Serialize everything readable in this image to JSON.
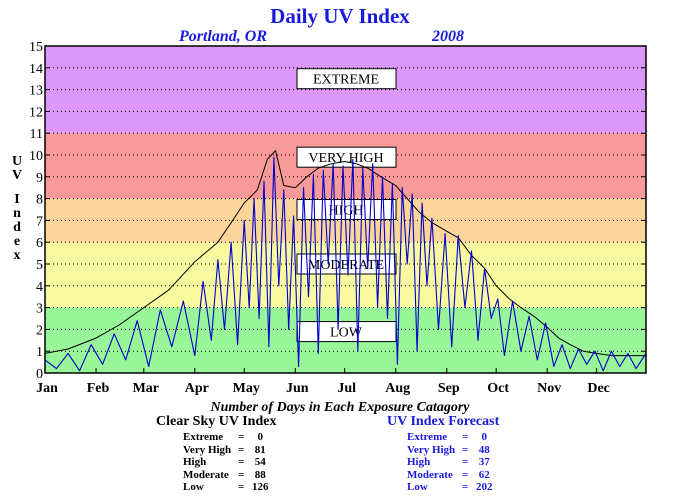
{
  "page": {
    "title": "Daily UV Index",
    "location": "Portland, OR",
    "year": "2008",
    "days_caption": "Number of Days in Each Exposure Catagory"
  },
  "chart_data": {
    "type": "line",
    "title": "Daily UV Index",
    "ylabel": "UV Index",
    "ylim": [
      0,
      15
    ],
    "yticks": [
      0,
      1,
      2,
      3,
      4,
      5,
      6,
      7,
      8,
      9,
      10,
      11,
      12,
      13,
      14,
      15
    ],
    "xlim": [
      1,
      366
    ],
    "months": [
      "Jan",
      "Feb",
      "Mar",
      "Apr",
      "May",
      "Jun",
      "Jul",
      "Aug",
      "Sep",
      "Oct",
      "Nov",
      "Dec"
    ],
    "month_start_days": [
      1,
      32,
      61,
      92,
      122,
      153,
      183,
      214,
      245,
      275,
      306,
      336
    ],
    "grid": true,
    "bands": [
      {
        "label": "LOW",
        "from": 0,
        "to": 3,
        "color": "#98f598",
        "label_y": 1.9
      },
      {
        "label": "MODERATE",
        "from": 3,
        "to": 6,
        "color": "#f9f9a0",
        "label_y": 5.0
      },
      {
        "label": "HIGH",
        "from": 6,
        "to": 8,
        "color": "#fbd59a",
        "label_y": 7.5
      },
      {
        "label": "VERY HIGH",
        "from": 8,
        "to": 11,
        "color": "#f89a9a",
        "label_y": 9.9
      },
      {
        "label": "EXTREME",
        "from": 11,
        "to": 15,
        "color": "#dc98f8",
        "label_y": 13.5
      }
    ],
    "series": [
      {
        "name": "Clear Sky UV Index",
        "color": "#000000",
        "x": [
          1,
          15,
          32,
          46,
          61,
          76,
          92,
          106,
          115,
          122,
          130,
          136,
          141,
          146,
          153,
          160,
          167,
          175,
          183,
          190,
          197,
          205,
          214,
          221,
          228,
          236,
          245,
          252,
          260,
          268,
          275,
          283,
          290,
          298,
          306,
          313,
          320,
          328,
          336,
          345,
          355,
          366
        ],
        "values": [
          0.9,
          1.1,
          1.6,
          2.2,
          3.0,
          3.8,
          5.1,
          6.0,
          7.0,
          7.8,
          8.4,
          9.8,
          10.2,
          8.6,
          8.5,
          9.0,
          9.4,
          9.6,
          9.7,
          9.6,
          9.4,
          9.0,
          8.6,
          8.0,
          7.4,
          6.9,
          6.5,
          6.2,
          5.4,
          4.8,
          4.0,
          3.4,
          3.0,
          2.6,
          2.1,
          1.6,
          1.3,
          1.0,
          0.9,
          0.8,
          0.8,
          0.8
        ]
      },
      {
        "name": "UV Index Forecast",
        "color": "#0000cc",
        "x": [
          1,
          8,
          15,
          22,
          29,
          36,
          43,
          50,
          57,
          64,
          71,
          78,
          85,
          92,
          97,
          102,
          106,
          110,
          114,
          118,
          122,
          125,
          128,
          131,
          134,
          137,
          140,
          143,
          146,
          149,
          152,
          155,
          158,
          161,
          164,
          167,
          170,
          173,
          176,
          179,
          182,
          185,
          188,
          191,
          194,
          197,
          200,
          203,
          206,
          209,
          212,
          215,
          218,
          221,
          224,
          227,
          230,
          233,
          236,
          240,
          244,
          248,
          252,
          256,
          260,
          264,
          268,
          272,
          276,
          280,
          285,
          290,
          295,
          300,
          305,
          310,
          315,
          320,
          325,
          330,
          335,
          340,
          345,
          350,
          355,
          360,
          366
        ],
        "values": [
          0.6,
          0.2,
          0.9,
          0.1,
          1.3,
          0.4,
          1.8,
          0.6,
          2.4,
          0.3,
          2.9,
          1.2,
          3.3,
          0.8,
          4.2,
          1.5,
          5.2,
          2.0,
          6.0,
          1.3,
          7.0,
          3.0,
          8.0,
          2.5,
          8.8,
          1.2,
          9.9,
          4.0,
          8.4,
          2.0,
          7.2,
          0.3,
          8.5,
          3.5,
          9.1,
          0.9,
          9.3,
          5.0,
          9.6,
          2.0,
          9.5,
          4.5,
          9.8,
          1.0,
          9.4,
          4.8,
          9.6,
          3.0,
          9.0,
          2.5,
          8.7,
          0.4,
          8.5,
          5.0,
          8.2,
          1.0,
          7.8,
          4.0,
          7.1,
          2.0,
          6.4,
          1.2,
          6.3,
          3.0,
          5.6,
          1.5,
          4.8,
          2.5,
          3.4,
          0.8,
          3.3,
          1.0,
          2.6,
          0.6,
          2.3,
          0.3,
          1.3,
          0.2,
          1.1,
          0.4,
          1.0,
          0.1,
          1.0,
          0.3,
          0.9,
          0.2,
          0.9
        ]
      }
    ]
  },
  "stats": {
    "clear": {
      "title": "Clear Sky UV Index",
      "rows": [
        {
          "label": "Extreme",
          "value": "0"
        },
        {
          "label": "Very High",
          "value": "81"
        },
        {
          "label": "High",
          "value": "54"
        },
        {
          "label": "Moderate",
          "value": "88"
        },
        {
          "label": "Low",
          "value": "126"
        }
      ]
    },
    "forecast": {
      "title": "UV Index Forecast",
      "rows": [
        {
          "label": "Extreme",
          "value": "0"
        },
        {
          "label": "Very High",
          "value": "48"
        },
        {
          "label": "High",
          "value": "37"
        },
        {
          "label": "Moderate",
          "value": "62"
        },
        {
          "label": "Low",
          "value": "202"
        }
      ]
    }
  },
  "colors": {
    "title": "#1a1adc",
    "forecast_text": "#1a1adc"
  }
}
